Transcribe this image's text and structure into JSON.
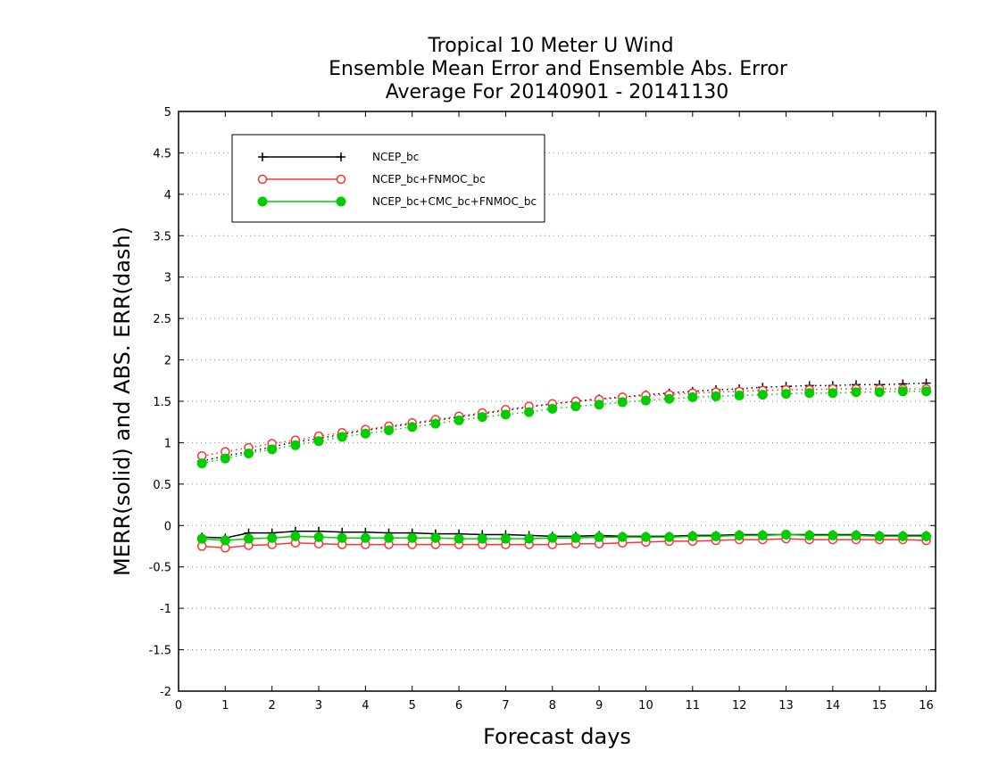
{
  "chart_data": {
    "type": "line",
    "title_lines": [
      "Tropical 10 Meter U Wind",
      "Ensemble Mean Error and Ensemble Abs. Error",
      "Average For 20140901 - 20141130"
    ],
    "xlabel": "Forecast days",
    "ylabel": "MERR(solid) and ABS. ERR(dash)",
    "xlim": [
      0,
      16.2
    ],
    "ylim": [
      -2,
      5
    ],
    "x_ticks": [
      0,
      1,
      2,
      3,
      4,
      5,
      6,
      7,
      8,
      9,
      10,
      11,
      12,
      13,
      14,
      15,
      16
    ],
    "x_tick_labels": [
      "0",
      "1",
      "2",
      "3",
      "4",
      "5",
      "6",
      "7",
      "8",
      "9",
      "10",
      "11",
      "12",
      "13",
      "14",
      "15",
      "16"
    ],
    "y_ticks": [
      -2,
      -1.5,
      -1,
      -0.5,
      0,
      0.5,
      1,
      1.5,
      2,
      2.5,
      3,
      3.5,
      4,
      4.5,
      5
    ],
    "y_tick_labels": [
      "-2",
      "-1.5",
      "-1",
      "-0.5",
      "0",
      "0.5",
      "1",
      "1.5",
      "2",
      "2.5",
      "3",
      "3.5",
      "4",
      "4.5",
      "5"
    ],
    "grid": "horizontal-dotted",
    "legend_position": "top-left",
    "x": [
      0.5,
      1,
      1.5,
      2,
      2.5,
      3,
      3.5,
      4,
      4.5,
      5,
      5.5,
      6,
      6.5,
      7,
      7.5,
      8,
      8.5,
      9,
      9.5,
      10,
      10.5,
      11,
      11.5,
      12,
      12.5,
      13,
      13.5,
      14,
      14.5,
      15,
      15.5,
      16
    ],
    "series": [
      {
        "name": "NCEP_bc",
        "color": "#000000",
        "marker": "plus",
        "merr": [
          -0.14,
          -0.15,
          -0.09,
          -0.09,
          -0.07,
          -0.07,
          -0.08,
          -0.08,
          -0.09,
          -0.09,
          -0.1,
          -0.1,
          -0.11,
          -0.11,
          -0.12,
          -0.13,
          -0.13,
          -0.12,
          -0.13,
          -0.13,
          -0.13,
          -0.12,
          -0.12,
          -0.11,
          -0.11,
          -0.11,
          -0.11,
          -0.11,
          -0.11,
          -0.12,
          -0.12,
          -0.12
        ],
        "abs_err": [
          0.78,
          0.84,
          0.89,
          0.95,
          1.01,
          1.05,
          1.1,
          1.15,
          1.19,
          1.23,
          1.27,
          1.31,
          1.35,
          1.39,
          1.43,
          1.47,
          1.5,
          1.53,
          1.55,
          1.58,
          1.6,
          1.62,
          1.64,
          1.65,
          1.67,
          1.68,
          1.69,
          1.69,
          1.7,
          1.7,
          1.71,
          1.72
        ]
      },
      {
        "name": "NCEP_bc+FNMOC_bc",
        "color": "#ff3333",
        "marker": "open-circle",
        "merr": [
          -0.25,
          -0.27,
          -0.24,
          -0.23,
          -0.21,
          -0.22,
          -0.23,
          -0.23,
          -0.23,
          -0.23,
          -0.23,
          -0.23,
          -0.23,
          -0.23,
          -0.23,
          -0.23,
          -0.22,
          -0.22,
          -0.21,
          -0.2,
          -0.19,
          -0.19,
          -0.18,
          -0.17,
          -0.17,
          -0.16,
          -0.17,
          -0.17,
          -0.17,
          -0.17,
          -0.17,
          -0.18
        ],
        "abs_err": [
          0.84,
          0.89,
          0.94,
          0.99,
          1.03,
          1.08,
          1.12,
          1.16,
          1.2,
          1.24,
          1.28,
          1.32,
          1.36,
          1.4,
          1.44,
          1.47,
          1.5,
          1.52,
          1.55,
          1.57,
          1.58,
          1.6,
          1.61,
          1.62,
          1.63,
          1.64,
          1.64,
          1.65,
          1.65,
          1.65,
          1.65,
          1.65
        ]
      },
      {
        "name": "NCEP_bc+CMC_bc+FNMOC_bc",
        "color": "#00cc00",
        "marker": "filled-circle",
        "merr": [
          -0.16,
          -0.18,
          -0.16,
          -0.15,
          -0.13,
          -0.14,
          -0.15,
          -0.15,
          -0.15,
          -0.15,
          -0.15,
          -0.16,
          -0.16,
          -0.16,
          -0.16,
          -0.15,
          -0.15,
          -0.14,
          -0.14,
          -0.14,
          -0.14,
          -0.13,
          -0.13,
          -0.12,
          -0.12,
          -0.11,
          -0.12,
          -0.12,
          -0.12,
          -0.13,
          -0.13,
          -0.13
        ],
        "abs_err": [
          0.75,
          0.81,
          0.87,
          0.92,
          0.97,
          1.02,
          1.07,
          1.11,
          1.15,
          1.19,
          1.23,
          1.27,
          1.31,
          1.34,
          1.37,
          1.41,
          1.44,
          1.46,
          1.49,
          1.51,
          1.53,
          1.55,
          1.56,
          1.57,
          1.58,
          1.59,
          1.6,
          1.6,
          1.61,
          1.61,
          1.62,
          1.62
        ]
      }
    ]
  }
}
